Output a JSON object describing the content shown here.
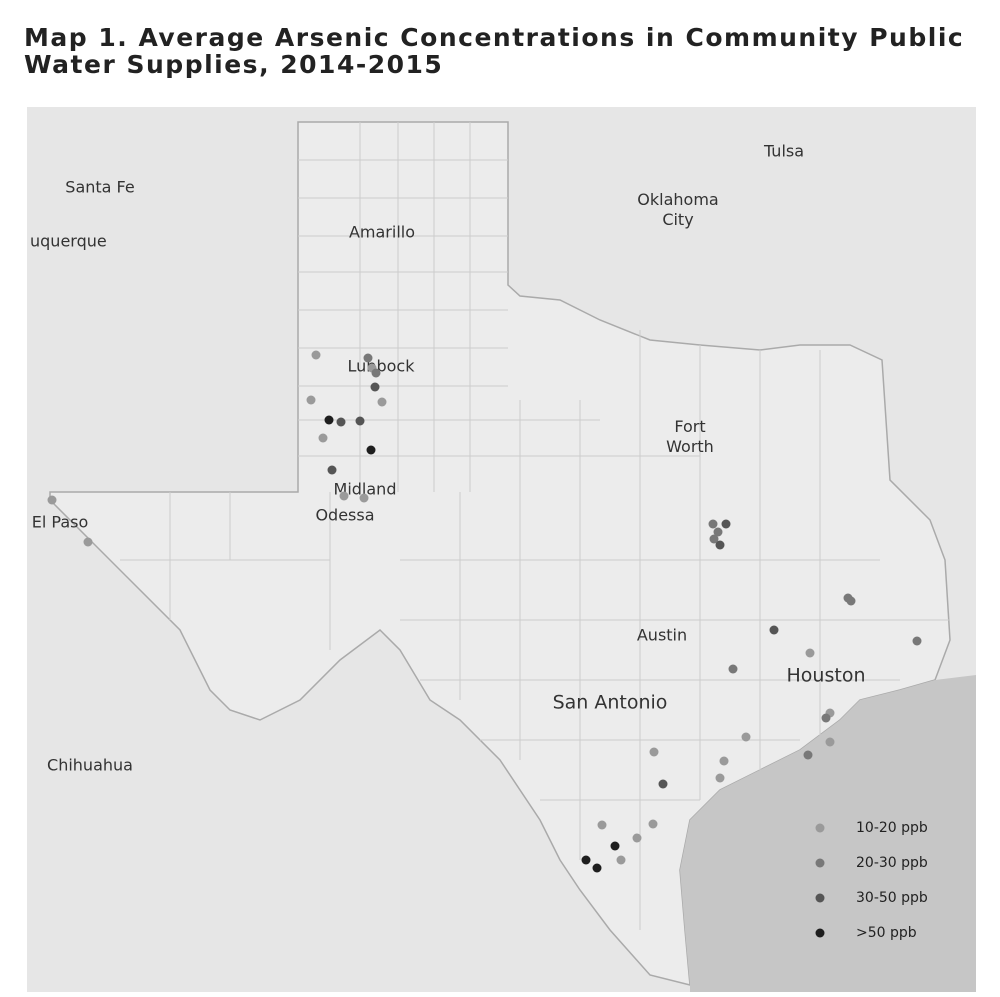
{
  "title": "Map 1. Average Arsenic Concentrations in Community Public Water Supplies, 2014-2015",
  "cities": [
    "Tulsa",
    "Santa Fe",
    "Oklahoma City",
    "uquerque",
    "Amarillo",
    "Lubbock",
    "Fort Worth",
    "Midland",
    "Odessa",
    "El Paso",
    "Austin",
    "Houston",
    "San Antonio",
    "Chihuahua"
  ],
  "legend": [
    {
      "label": "10-20 ppb",
      "color": "#9a9a9a"
    },
    {
      "label": "20-30 ppb",
      "color": "#787878"
    },
    {
      "label": "30-50 ppb",
      "color": "#555555"
    },
    {
      "label": ">50 ppb",
      "color": "#1e1e1e"
    }
  ]
}
